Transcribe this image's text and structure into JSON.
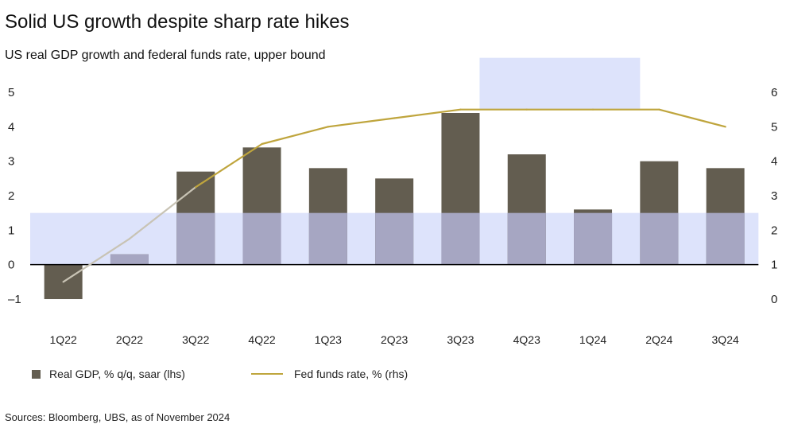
{
  "header": {
    "title": "Solid US growth despite sharp rate hikes",
    "subtitle": "US real GDP growth and federal funds rate, upper bound"
  },
  "legend": {
    "gdp_label": "Real GDP, % q/q, saar (lhs)",
    "fed_label": "Fed funds rate, % (rhs)"
  },
  "footer": {
    "source": "Sources: Bloomberg, UBS, as of November 2024"
  },
  "colors": {
    "bar": "#635d50",
    "bar_overlay": "#a6a6c2",
    "band": "#dde3fb",
    "line": "#bfa53d",
    "line_faded": "#c8c3b4",
    "axis": "#000000"
  },
  "chart_data": {
    "type": "bar",
    "categories": [
      "1Q22",
      "2Q22",
      "3Q22",
      "4Q22",
      "1Q23",
      "2Q23",
      "3Q23",
      "4Q23",
      "1Q24",
      "2Q24",
      "3Q24"
    ],
    "series": [
      {
        "name": "Real GDP, % q/q, saar (lhs)",
        "type": "bar",
        "axis": "left",
        "values": [
          -1.0,
          0.3,
          2.7,
          3.4,
          2.8,
          2.5,
          4.4,
          3.2,
          1.6,
          3.0,
          2.8
        ]
      },
      {
        "name": "Fed funds rate, % (rhs)",
        "type": "line",
        "axis": "right",
        "values": [
          0.5,
          1.75,
          3.25,
          4.5,
          5.0,
          5.25,
          5.5,
          5.5,
          5.5,
          5.5,
          5.0
        ]
      }
    ],
    "ylim_left": [
      -1,
      5
    ],
    "yticks_left": [
      "5",
      "4",
      "3",
      "2",
      "1",
      "0",
      "–1"
    ],
    "ylim_right": [
      0,
      6
    ],
    "yticks_right": [
      "6",
      "5",
      "4",
      "3",
      "2",
      "1",
      "0"
    ],
    "shaded_regions": [
      {
        "axis": "left",
        "y_from": 0,
        "y_to": 1.5,
        "x_from": "1Q22",
        "x_to": "3Q24"
      },
      {
        "axis": "right",
        "y_from": 5.5,
        "y_to": 7,
        "x_from": "3Q23",
        "x_to": "2Q24"
      }
    ],
    "title": "Solid US growth despite sharp rate hikes",
    "xlabel": "",
    "ylabel": ""
  }
}
